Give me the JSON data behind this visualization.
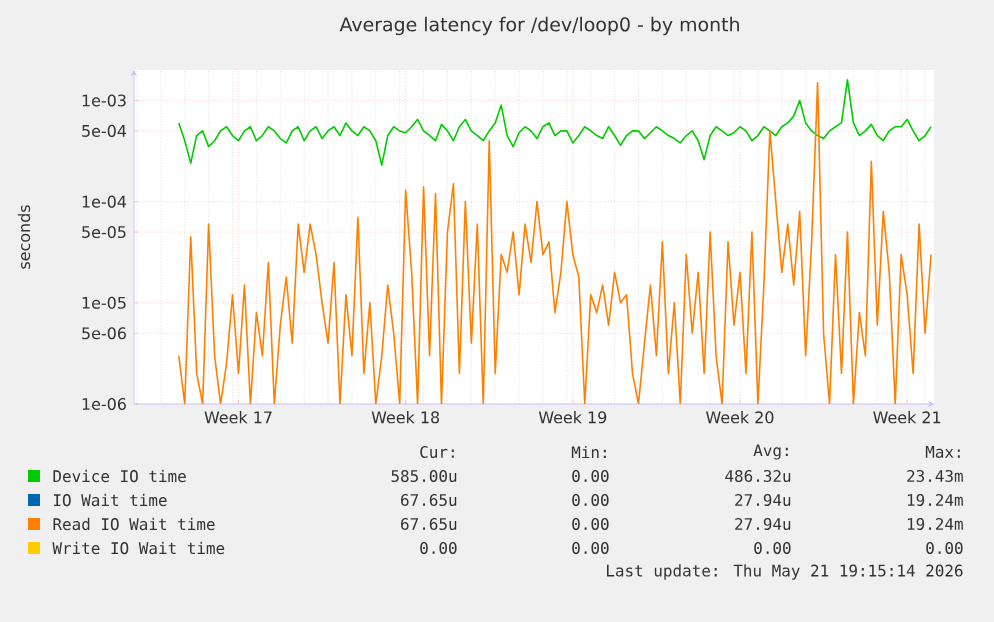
{
  "chart_data": {
    "type": "line",
    "title": "Average latency for /dev/loop0 - by month",
    "ylabel": "seconds",
    "log": "y",
    "grid": true,
    "legend": "bottom",
    "categories": [
      null,
      null,
      null,
      null,
      null,
      null,
      null,
      null,
      null,
      null,
      null,
      null,
      null,
      null,
      null,
      null,
      null,
      "Week 17",
      null,
      null,
      null,
      null,
      null,
      null,
      null,
      null,
      null,
      null,
      null,
      null,
      null,
      null,
      null,
      null,
      null,
      null,
      null,
      null,
      null,
      null,
      null,
      null,
      null,
      null,
      null,
      "Week 18",
      null,
      null,
      null,
      null,
      null,
      null,
      null,
      null,
      null,
      null,
      null,
      null,
      null,
      null,
      null,
      null,
      null,
      null,
      null,
      null,
      null,
      null,
      null,
      null,
      null,
      null,
      null,
      "Week 19",
      null,
      null,
      null,
      null,
      null,
      null,
      null,
      null,
      null,
      null,
      null,
      null,
      null,
      null,
      null,
      null,
      null,
      null,
      null,
      null,
      null,
      null,
      null,
      null,
      null,
      null,
      null,
      "Week 20",
      null,
      null,
      null,
      null,
      null,
      null,
      null,
      null,
      null,
      null,
      null,
      null,
      null,
      null,
      null,
      null,
      null,
      null,
      null,
      null,
      null,
      null,
      null,
      null,
      null,
      null,
      null,
      "Week 21",
      null,
      null,
      null,
      null
    ],
    "ylim": [
      1e-06,
      0.002
    ],
    "yticks": [
      {
        "value": 1e-06,
        "label": "1e-06"
      },
      {
        "value": 5e-06,
        "label": "5e-06"
      },
      {
        "value": 1e-05,
        "label": "1e-05"
      },
      {
        "value": 5e-05,
        "label": "5e-05"
      },
      {
        "value": 0.0001,
        "label": "1e-04"
      },
      {
        "value": 0.0005,
        "label": "5e-04"
      },
      {
        "value": 0.001,
        "label": "1e-03"
      }
    ],
    "series": [
      {
        "name": "Device IO time",
        "color": "#00cc00",
        "values": [
          null,
          null,
          null,
          null,
          null,
          null,
          null,
          0.0006,
          0.0004,
          0.00024,
          0.00045,
          0.0005,
          0.00035,
          0.0004,
          0.0005,
          0.00055,
          0.00045,
          0.0004,
          0.0005,
          0.00055,
          0.0004,
          0.00045,
          0.00055,
          0.0005,
          0.00042,
          0.00038,
          0.0005,
          0.00055,
          0.0004,
          0.0005,
          0.00055,
          0.00042,
          0.0005,
          0.00055,
          0.00045,
          0.0006,
          0.0005,
          0.00045,
          0.00055,
          0.0005,
          0.0004,
          0.00023,
          0.00045,
          0.00055,
          0.0005,
          0.00048,
          0.00055,
          0.00065,
          0.0005,
          0.00045,
          0.0004,
          0.00058,
          0.0005,
          0.0004,
          0.00055,
          0.00065,
          0.0005,
          0.00045,
          0.0004,
          0.0005,
          0.0006,
          0.0009,
          0.00045,
          0.00035,
          0.00048,
          0.00055,
          0.0005,
          0.00042,
          0.00055,
          0.0006,
          0.00045,
          0.0005,
          0.0005,
          0.00038,
          0.00045,
          0.00055,
          0.0005,
          0.00045,
          0.00042,
          0.00055,
          0.00045,
          0.00036,
          0.00045,
          0.0005,
          0.0005,
          0.00042,
          0.00048,
          0.00055,
          0.0005,
          0.00045,
          0.00042,
          0.00038,
          0.00045,
          0.0005,
          0.0004,
          0.00026,
          0.00045,
          0.00055,
          0.0005,
          0.00045,
          0.00048,
          0.00055,
          0.0005,
          0.0004,
          0.00045,
          0.00055,
          0.0005,
          0.00045,
          0.00055,
          0.0006,
          0.0007,
          0.001,
          0.0006,
          0.0005,
          0.00045,
          0.00042,
          0.0005,
          0.00055,
          0.0006,
          0.0016,
          0.0006,
          0.00045,
          0.0005,
          0.00058,
          0.00045,
          0.0004,
          0.0005,
          0.00055,
          0.00055,
          0.00065,
          0.0005,
          0.0004,
          0.00045,
          0.00055
        ]
      },
      {
        "name": "IO Wait time",
        "color": "#0066b3",
        "values": [
          null,
          null,
          null,
          null,
          null,
          null,
          null,
          null,
          null,
          null,
          null,
          null,
          null,
          null,
          null,
          null,
          null,
          null,
          null,
          null,
          null,
          null,
          null,
          null,
          null,
          null,
          null,
          null,
          null,
          null,
          null,
          null,
          null,
          null,
          null,
          null,
          null,
          null,
          null,
          null,
          null,
          null,
          null,
          null,
          null,
          null,
          null,
          null,
          null,
          null,
          null,
          null,
          null,
          null,
          null,
          null,
          null,
          null,
          null,
          null,
          null,
          null,
          null,
          null,
          null,
          null,
          null,
          null,
          null,
          null,
          null,
          null,
          null,
          null,
          null,
          null,
          null,
          null,
          null,
          null,
          null,
          null,
          null,
          null,
          null,
          null,
          null,
          null,
          null,
          null,
          null,
          null,
          null,
          null,
          null,
          null,
          null,
          null,
          null,
          null,
          null,
          null,
          null,
          null,
          null,
          null,
          null,
          null,
          null,
          null,
          null,
          null,
          null,
          null,
          null,
          null,
          null,
          null,
          null,
          null,
          null,
          null,
          null,
          null,
          null,
          null,
          null,
          null,
          null,
          null,
          null,
          null,
          null,
          null
        ]
      },
      {
        "name": "Read IO Wait time",
        "color": "#ff8000",
        "values": [
          null,
          null,
          null,
          null,
          null,
          null,
          null,
          3e-06,
          1e-06,
          4.5e-05,
          2e-06,
          1e-06,
          6e-05,
          3e-06,
          1e-06,
          2.5e-06,
          1.2e-05,
          2e-06,
          1.5e-05,
          1e-06,
          8e-06,
          3e-06,
          2.5e-05,
          1e-06,
          6e-06,
          1.8e-05,
          4e-06,
          6e-05,
          2e-05,
          6e-05,
          3e-05,
          1e-05,
          4e-06,
          2.5e-05,
          1e-06,
          1.2e-05,
          3e-06,
          7e-05,
          2e-06,
          1e-05,
          1e-06,
          3e-06,
          1.5e-05,
          5e-06,
          1e-06,
          0.00013,
          2e-05,
          1e-06,
          0.00014,
          3e-06,
          0.00012,
          1e-06,
          5e-05,
          0.00015,
          2e-06,
          0.0001,
          4e-06,
          6e-05,
          1e-06,
          0.0004,
          2e-06,
          3e-05,
          2e-05,
          5e-05,
          1.2e-05,
          6e-05,
          2.5e-05,
          0.0001,
          3e-05,
          4e-05,
          8e-06,
          2e-05,
          0.0001,
          3e-05,
          1.8e-05,
          1e-06,
          1.2e-05,
          8e-06,
          1.5e-05,
          6e-06,
          2e-05,
          1e-05,
          1.2e-05,
          2e-06,
          1e-06,
          4e-06,
          1.5e-05,
          3e-06,
          4e-05,
          2e-06,
          1e-05,
          1e-06,
          3e-05,
          5e-06,
          2e-05,
          2e-06,
          5e-05,
          3e-06,
          1e-06,
          4e-05,
          6e-06,
          2e-05,
          2e-06,
          5e-05,
          1e-06,
          1.5e-05,
          0.0005,
          0.0001,
          2e-05,
          6e-05,
          1.5e-05,
          8e-05,
          3e-06,
          4e-05,
          0.0015,
          5e-06,
          1e-06,
          3e-05,
          2e-06,
          5e-05,
          1e-06,
          8e-06,
          3e-06,
          0.00025,
          6e-06,
          8e-05,
          2e-05,
          1e-06,
          3e-05,
          1.2e-05,
          2e-06,
          6e-05,
          5e-06,
          3e-05
        ]
      },
      {
        "name": "Write IO Wait time",
        "color": "#ffcc00",
        "values": [
          null,
          null,
          null,
          null,
          null,
          null,
          null,
          null,
          null,
          null,
          null,
          null,
          null,
          null,
          null,
          null,
          null,
          null,
          null,
          null,
          null,
          null,
          null,
          null,
          null,
          null,
          null,
          null,
          null,
          null,
          null,
          null,
          null,
          null,
          null,
          null,
          null,
          null,
          null,
          null,
          null,
          null,
          null,
          null,
          null,
          null,
          null,
          null,
          null,
          null,
          null,
          null,
          null,
          null,
          null,
          null,
          null,
          null,
          null,
          null,
          null,
          null,
          null,
          null,
          null,
          null,
          null,
          null,
          null,
          null,
          null,
          null,
          null,
          null,
          null,
          null,
          null,
          null,
          null,
          null,
          null,
          null,
          null,
          null,
          null,
          null,
          null,
          null,
          null,
          null,
          null,
          null,
          null,
          null,
          null,
          null,
          null,
          null,
          null,
          null,
          null,
          null,
          null,
          null,
          null,
          null,
          null,
          null,
          null,
          null,
          null,
          null,
          null,
          null,
          null,
          null,
          null,
          null,
          null,
          null,
          null,
          null,
          null,
          null,
          null,
          null,
          null,
          null,
          null,
          null,
          null,
          null,
          null,
          null
        ]
      }
    ],
    "annotations": [
      "Cur:",
      "Min:",
      "Avg:",
      "Max:",
      "585.00u",
      "0.00",
      "486.32u",
      "23.43m",
      "67.65u",
      "0.00",
      "27.94u",
      "19.24m",
      "67.65u",
      "0.00",
      "27.94u",
      "19.24m",
      "0.00",
      "0.00",
      "0.00",
      "0.00",
      "Last update: Thu May 21 19:15:14 2026"
    ]
  }
}
